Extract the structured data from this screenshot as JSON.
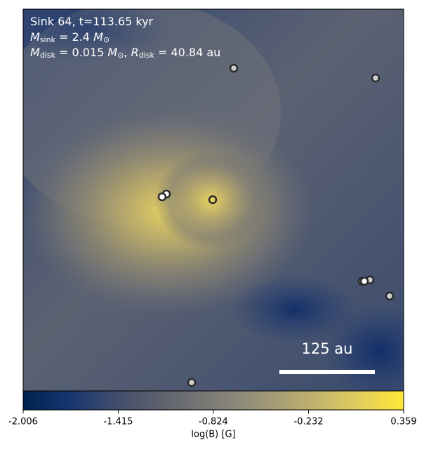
{
  "chart_data": {
    "type": "image",
    "annotation_lines": [
      [
        {
          "text": "Sink 64, t=113.65 kyr",
          "style": "normal"
        }
      ],
      [
        {
          "text": "M",
          "style": "italic"
        },
        {
          "text": "sink",
          "style": "sub"
        },
        {
          "text": " = 2.4 ",
          "style": "normal"
        },
        {
          "text": "M",
          "style": "italic"
        },
        {
          "text": "⊙",
          "style": "sub"
        }
      ],
      [
        {
          "text": "M",
          "style": "italic"
        },
        {
          "text": "disk",
          "style": "sub"
        },
        {
          "text": " = 0.015 ",
          "style": "normal"
        },
        {
          "text": "M",
          "style": "italic"
        },
        {
          "text": "⊙",
          "style": "sub"
        },
        {
          "text": ", ",
          "style": "normal"
        },
        {
          "text": "R",
          "style": "italic"
        },
        {
          "text": "disk",
          "style": "sub"
        },
        {
          "text": " = 40.84 au",
          "style": "normal"
        }
      ]
    ],
    "scale_bar_label": "125 au",
    "colorbar": {
      "label": "log(B) [G]",
      "lim": [
        -2.006,
        0.359
      ],
      "ticks": [
        -2.006,
        -1.415,
        -0.824,
        -0.232,
        0.359
      ],
      "colors": [
        "#00224e",
        "#123570",
        "#3b496c",
        "#575d6d",
        "#707173",
        "#8a8779",
        "#a69d75",
        "#c4b56c",
        "#e4cf5b",
        "#fee838"
      ]
    }
  }
}
